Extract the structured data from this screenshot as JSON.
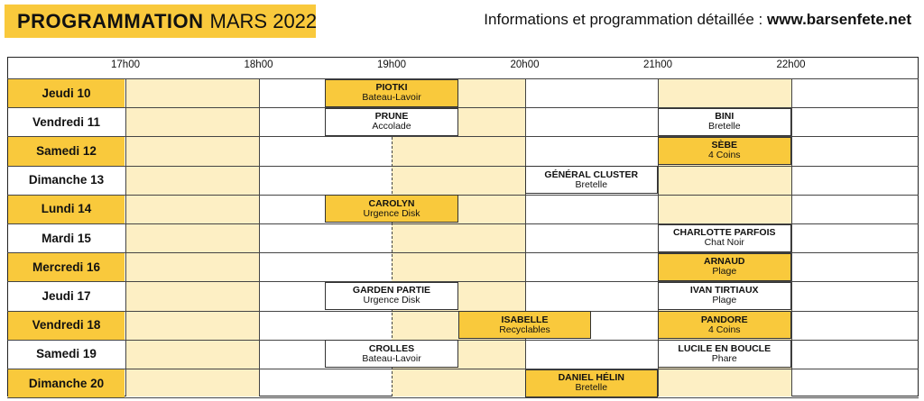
{
  "header": {
    "title_bold": "PROGRAMMATION",
    "title_light": "MARS 2022",
    "info_text": "Informations et programmation détaillée :",
    "info_url": "www.barsenfete.net"
  },
  "time_labels": [
    "17h00",
    "18h00",
    "19h00",
    "20h00",
    "21h00",
    "22h00"
  ],
  "colors": {
    "accent": "#f9c93c",
    "accent_light": "#fdefc4",
    "white": "#ffffff"
  },
  "days": [
    {
      "label": "Jeudi 10",
      "highlight": true
    },
    {
      "label": "Vendredi 11",
      "highlight": false
    },
    {
      "label": "Samedi 12",
      "highlight": true
    },
    {
      "label": "Dimanche 13",
      "highlight": false
    },
    {
      "label": "Lundi 14",
      "highlight": true
    },
    {
      "label": "Mardi 15",
      "highlight": false
    },
    {
      "label": "Mercredi 16",
      "highlight": true
    },
    {
      "label": "Jeudi 17",
      "highlight": false
    },
    {
      "label": "Vendredi 18",
      "highlight": true
    },
    {
      "label": "Samedi 19",
      "highlight": false
    },
    {
      "label": "Dimanche 20",
      "highlight": true
    }
  ],
  "events": [
    {
      "day": 0,
      "start": 18.5,
      "end": 19.5,
      "name": "PIOTKI",
      "venue": "Bateau-Lavoir",
      "filled": true
    },
    {
      "day": 1,
      "start": 18.5,
      "end": 19.5,
      "name": "PRUNE",
      "venue": "Accolade",
      "filled": false
    },
    {
      "day": 1,
      "start": 21.0,
      "end": 22.0,
      "name": "BINI",
      "venue": "Bretelle",
      "filled": false
    },
    {
      "day": 2,
      "start": 21.0,
      "end": 22.0,
      "name": "SÈBE",
      "venue": "4 Coins",
      "filled": true
    },
    {
      "day": 3,
      "start": 20.0,
      "end": 21.0,
      "name": "GÉNÉRAL CLUSTER",
      "venue": "Bretelle",
      "filled": false
    },
    {
      "day": 4,
      "start": 18.5,
      "end": 19.5,
      "name": "CAROLYN",
      "venue": "Urgence Disk",
      "filled": true
    },
    {
      "day": 5,
      "start": 21.0,
      "end": 22.0,
      "name": "CHARLOTTE PARFOIS",
      "venue": "Chat Noir",
      "filled": false
    },
    {
      "day": 6,
      "start": 21.0,
      "end": 22.0,
      "name": "ARNAUD",
      "venue": "Plage",
      "filled": true
    },
    {
      "day": 7,
      "start": 18.5,
      "end": 19.5,
      "name": "GARDEN PARTIE",
      "venue": "Urgence Disk",
      "filled": false
    },
    {
      "day": 7,
      "start": 21.0,
      "end": 22.0,
      "name": "IVAN TIRTIAUX",
      "venue": "Plage",
      "filled": false
    },
    {
      "day": 8,
      "start": 19.5,
      "end": 20.5,
      "name": "ISABELLE",
      "venue": "Recyclables",
      "filled": true
    },
    {
      "day": 8,
      "start": 21.0,
      "end": 22.0,
      "name": "PANDORE",
      "venue": "4 Coins",
      "filled": true
    },
    {
      "day": 9,
      "start": 18.5,
      "end": 19.5,
      "name": "CROLLES",
      "venue": "Bateau-Lavoir",
      "filled": false
    },
    {
      "day": 9,
      "start": 21.0,
      "end": 22.0,
      "name": "LUCILE EN BOUCLE",
      "venue": "Phare",
      "filled": false
    },
    {
      "day": 10,
      "start": 20.0,
      "end": 21.0,
      "name": "DANIEL HÉLIN",
      "venue": "Bretelle",
      "filled": true
    }
  ]
}
